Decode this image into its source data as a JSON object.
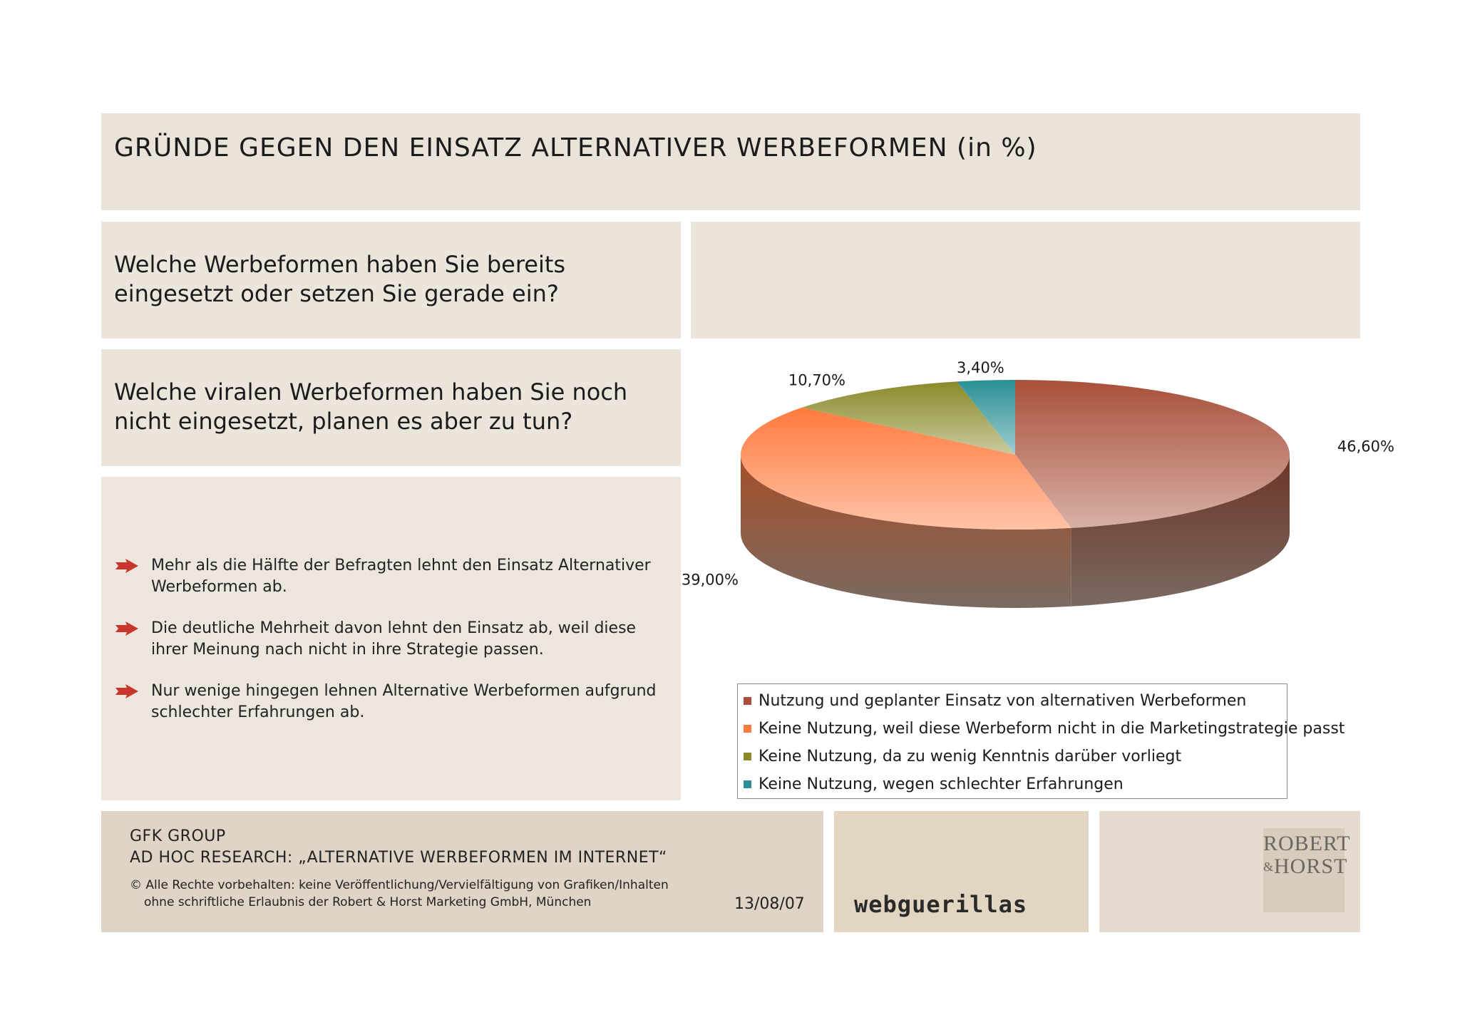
{
  "header": {
    "title": "GRÜNDE GEGEN DEN EINSATZ ALTERNATIVER WERBEFORMEN (in %)"
  },
  "questions": [
    "Welche Werbeformen haben Sie bereits eingesetzt oder setzen Sie gerade ein?",
    "Welche viralen Werbeformen haben Sie noch nicht eingesetzt, planen es aber zu tun?"
  ],
  "bullets": [
    "Mehr als die Hälfte der Befragten lehnt den Einsatz Alternativer Werbeformen ab.",
    "Die deutliche Mehrheit davon lehnt den Einsatz ab, weil diese ihrer Meinung nach nicht in ihre Strategie passen.",
    "Nur wenige hingegen lehnen Alternative Werbeformen aufgrund schlechter Erfahrungen ab."
  ],
  "chart_data": {
    "type": "pie",
    "title": "",
    "slices": [
      {
        "label": "Nutzung und geplanter Einsatz von alternativen Werbeformen",
        "value": 46.6,
        "value_label": "46,60%",
        "color": "#a8503a"
      },
      {
        "label": "Keine Nutzung, weil diese Werbeform nicht in die Marketingstrategie passt",
        "value": 39.0,
        "value_label": "39,00%",
        "color": "#ff7a3d"
      },
      {
        "label": "Keine Nutzung, da zu wenig Kenntnis darüber vorliegt",
        "value": 10.7,
        "value_label": "10,70%",
        "color": "#8a8a2a"
      },
      {
        "label": "Keine Nutzung, wegen schlechter Erfahrungen",
        "value": 3.4,
        "value_label": "3,40%",
        "color": "#2a8f96"
      }
    ],
    "legend_position": "bottom",
    "style": "3d"
  },
  "footer": {
    "org": "GFK GROUP",
    "study": "AD HOC RESEARCH: „ALTERNATIVE WERBEFORMEN IM INTERNET“",
    "copyright_line1": "© Alle Rechte vorbehalten: keine Veröffentlichung/Vervielfältigung von Grafiken/Inhalten",
    "copyright_line2": "ohne schriftliche Erlaubnis der Robert & Horst Marketing GmbH, München",
    "date": "13/08/07",
    "partner_logo": "webguerillas",
    "brand_logo": "ROBERT & HORST"
  }
}
